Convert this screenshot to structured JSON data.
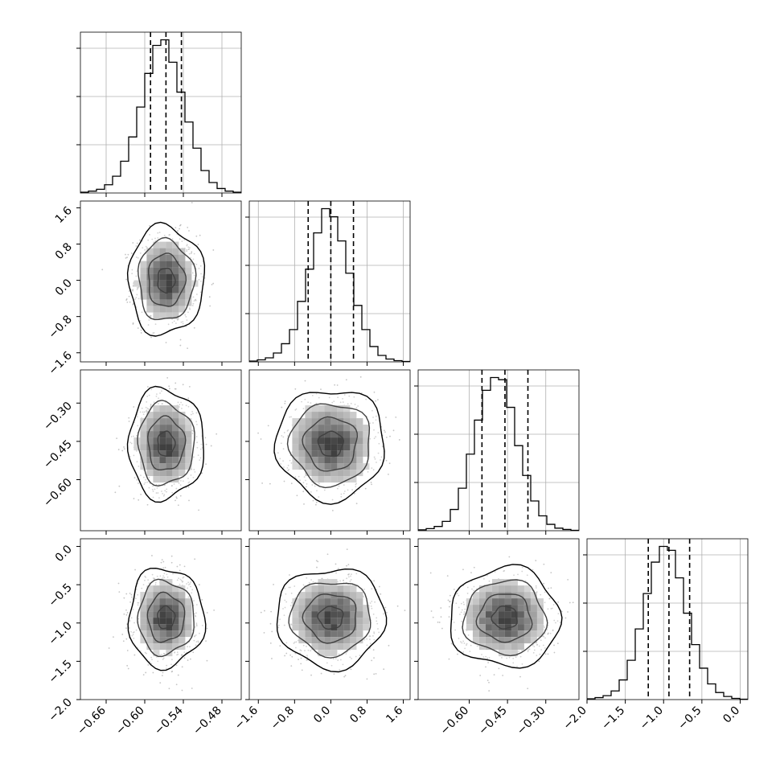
{
  "chart_data": {
    "type": "corner",
    "parameters": 4,
    "grid": true,
    "diagonal_type": "step-histogram",
    "offdiagonal_type": "2d-histogram with contours and scatter",
    "colors": {
      "line": "#000000",
      "grid": "#b0b0b0",
      "scatter": "#9e9e9e",
      "background": "#ffffff"
    },
    "params": [
      {
        "mean": -0.567,
        "sd": 0.0245,
        "range": [
          -0.7,
          -0.45
        ],
        "ticks": [
          -0.66,
          -0.6,
          -0.54,
          -0.48
        ],
        "tick_labels": [
          "−0.66",
          "−0.60",
          "−0.54",
          "−0.48"
        ],
        "quantiles": [
          -0.591,
          -0.567,
          -0.543
        ]
      },
      {
        "mean": 0.0,
        "sd": 0.5,
        "range": [
          -1.8,
          1.75
        ],
        "ticks": [
          -1.6,
          -0.8,
          0.0,
          0.8,
          1.6
        ],
        "tick_labels": [
          "−1.6",
          "−0.8",
          "0.0",
          "0.8",
          "1.6"
        ],
        "quantiles": [
          -0.5,
          0.0,
          0.5
        ]
      },
      {
        "mean": -0.46,
        "sd": 0.09,
        "range": [
          -0.8,
          -0.17
        ],
        "ticks": [
          -0.6,
          -0.45,
          -0.3
        ],
        "tick_labels": [
          "−0.60",
          "−0.45",
          "−0.30"
        ],
        "quantiles": [
          -0.55,
          -0.46,
          -0.37
        ]
      },
      {
        "mean": -0.93,
        "sd": 0.27,
        "range": [
          -2.0,
          0.1
        ],
        "ticks": [
          -2.0,
          -1.5,
          -1.0,
          -0.5,
          0.0
        ],
        "tick_labels": [
          "−2.0",
          "−1.5",
          "−1.0",
          "−0.5",
          "0.0"
        ],
        "quantiles": [
          -1.2,
          -0.93,
          -0.66
        ]
      }
    ],
    "histogram_counts": [
      [
        2,
        5,
        10,
        22,
        45,
        85,
        150,
        230,
        320,
        395,
        410,
        350,
        270,
        190,
        120,
        60,
        28,
        12,
        5,
        2
      ],
      [
        2,
        5,
        10,
        22,
        45,
        80,
        150,
        230,
        320,
        380,
        360,
        300,
        220,
        140,
        80,
        38,
        16,
        7,
        3,
        1
      ],
      [
        2,
        5,
        10,
        22,
        50,
        100,
        180,
        260,
        330,
        360,
        355,
        290,
        200,
        130,
        70,
        35,
        15,
        6,
        3,
        1
      ],
      [
        2,
        5,
        10,
        22,
        50,
        100,
        180,
        270,
        350,
        390,
        380,
        310,
        220,
        140,
        80,
        40,
        18,
        8,
        3,
        1
      ]
    ]
  }
}
